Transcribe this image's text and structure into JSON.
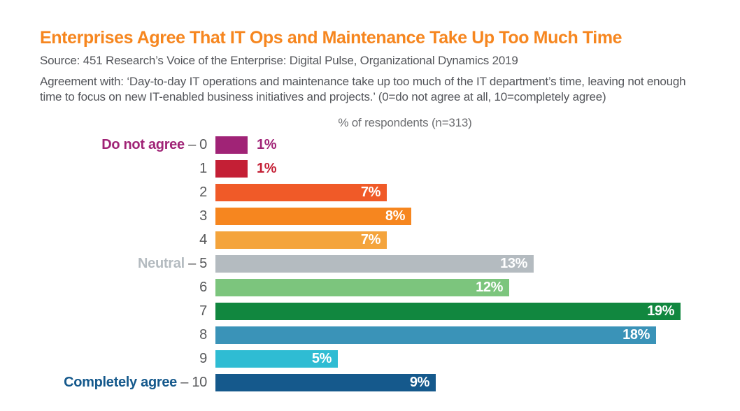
{
  "header": {
    "title": "Enterprises Agree That IT Ops and Maintenance Take Up Too Much Time",
    "title_color": "#F6861F",
    "source": "Source: 451 Research’s Voice of the Enterprise: Digital Pulse, Organizational Dynamics 2019",
    "description": "Agreement with: ‘Day-to-day IT operations and maintenance take up too much of the IT department’s time, leaving not enough time to focus on new IT-enabled business initiatives and projects.’ (0=do not agree at all, 10=completely agree)"
  },
  "chart_data": {
    "type": "bar",
    "orientation": "horizontal",
    "title": "% of respondents (n=313)",
    "categories": [
      "0",
      "1",
      "2",
      "3",
      "4",
      "5",
      "6",
      "7",
      "8",
      "9",
      "10"
    ],
    "values": [
      1,
      1,
      7,
      8,
      7,
      13,
      12,
      19,
      18,
      5,
      9
    ],
    "value_labels": [
      "1%",
      "1%",
      "7%",
      "8%",
      "7%",
      "13%",
      "12%",
      "19%",
      "18%",
      "5%",
      "9%"
    ],
    "unit": "%",
    "xlim": [
      0,
      19
    ],
    "grid": false,
    "legend": false,
    "bar_colors": [
      "#A02376",
      "#C41F35",
      "#F05A28",
      "#F6861F",
      "#F4A43C",
      "#B4BBC0",
      "#7CC57D",
      "#11873F",
      "#3A93B8",
      "#2FBCD3",
      "#15598C"
    ],
    "annotation_separator": " – ",
    "annotations": [
      {
        "category": "0",
        "label": "Do not agree",
        "color": "#A02376"
      },
      {
        "category": "5",
        "label": "Neutral",
        "color": "#B4BBC0"
      },
      {
        "category": "10",
        "label": "Completely agree",
        "color": "#15598C"
      }
    ],
    "value_label_colors": {
      "inside": "#FFFFFF"
    },
    "tick_color": "#58595B"
  }
}
